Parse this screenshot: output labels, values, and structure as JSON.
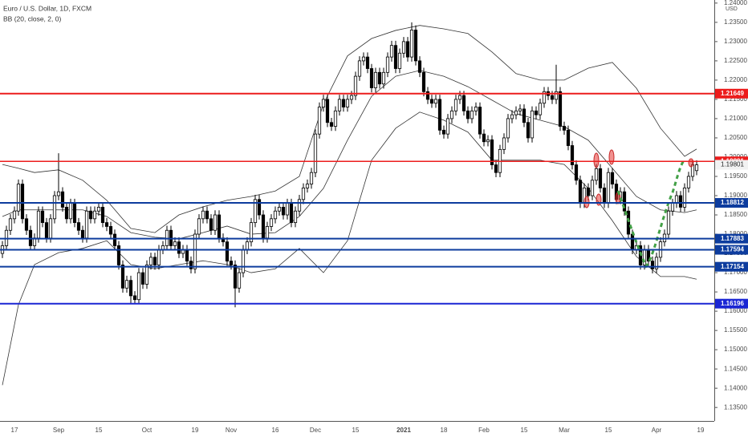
{
  "chart_data": {
    "type": "candlestick",
    "title": "Euro / U.S. Dollar, 1D, FXCM",
    "indicator": "BB (20, close, 2, 0)",
    "y_axis_label": "USD",
    "up_color": "#ffffff",
    "down_color": "#000000",
    "band_color": "#000000",
    "ylim": [
      1.1315,
      1.2408
    ],
    "yticks": [
      {
        "value": 1.135,
        "label": "1.13500"
      },
      {
        "value": 1.14,
        "label": "1.14000"
      },
      {
        "value": 1.145,
        "label": "1.14500"
      },
      {
        "value": 1.15,
        "label": "1.15000"
      },
      {
        "value": 1.155,
        "label": "1.15500"
      },
      {
        "value": 1.16,
        "label": "1.16000"
      },
      {
        "value": 1.165,
        "label": "1.16500"
      },
      {
        "value": 1.17,
        "label": "1.17000"
      },
      {
        "value": 1.175,
        "label": "1.17500"
      },
      {
        "value": 1.18,
        "label": "1.18000"
      },
      {
        "value": 1.185,
        "label": "1.18500"
      },
      {
        "value": 1.19,
        "label": "1.19000"
      },
      {
        "value": 1.195,
        "label": "1.19500"
      },
      {
        "value": 1.2,
        "label": "1.20000"
      },
      {
        "value": 1.205,
        "label": "1.20500"
      },
      {
        "value": 1.21,
        "label": "1.21000"
      },
      {
        "value": 1.215,
        "label": "1.21500"
      },
      {
        "value": 1.22,
        "label": "1.22000"
      },
      {
        "value": 1.225,
        "label": "1.22500"
      },
      {
        "value": 1.23,
        "label": "1.23000"
      },
      {
        "value": 1.235,
        "label": "1.23500"
      },
      {
        "value": 1.24,
        "label": "1.24000"
      }
    ],
    "categories": [
      null,
      null,
      null,
      "17",
      null,
      null,
      null,
      null,
      null,
      null,
      null,
      null,
      null,
      null,
      "Sep",
      null,
      null,
      null,
      null,
      null,
      null,
      null,
      null,
      null,
      "15",
      null,
      null,
      null,
      null,
      null,
      null,
      null,
      null,
      null,
      null,
      null,
      "Oct",
      null,
      null,
      null,
      null,
      null,
      null,
      null,
      null,
      null,
      null,
      null,
      "19",
      null,
      null,
      null,
      null,
      null,
      null,
      null,
      null,
      "Nov",
      null,
      null,
      null,
      null,
      null,
      null,
      null,
      null,
      null,
      null,
      "16",
      null,
      null,
      null,
      null,
      null,
      null,
      null,
      null,
      null,
      "Dec",
      null,
      null,
      null,
      null,
      null,
      null,
      null,
      null,
      null,
      "15",
      null,
      null,
      null,
      null,
      null,
      null,
      null,
      null,
      null,
      null,
      null,
      "2021",
      null,
      null,
      null,
      null,
      null,
      null,
      null,
      null,
      null,
      "18",
      null,
      null,
      null,
      null,
      null,
      null,
      null,
      null,
      null,
      "Feb",
      null,
      null,
      null,
      null,
      null,
      null,
      null,
      null,
      null,
      "15",
      null,
      null,
      null,
      null,
      null,
      null,
      null,
      null,
      null,
      "Mar",
      null,
      null,
      null,
      null,
      null,
      null,
      null,
      null,
      null,
      null,
      "15",
      null,
      null,
      null,
      null,
      null,
      null,
      null,
      null,
      null,
      null,
      null,
      "Apr",
      null,
      null,
      null,
      null,
      null,
      null,
      null,
      null,
      null,
      null,
      "19"
    ],
    "open": [
      1.175,
      1.177,
      1.181,
      1.184,
      1.186,
      1.193,
      1.184,
      1.181,
      1.177,
      1.179,
      1.186,
      1.183,
      1.179,
      1.184,
      1.19,
      1.191,
      1.187,
      1.184,
      1.188,
      1.183,
      1.181,
      1.179,
      1.186,
      1.184,
      1.186,
      1.187,
      1.183,
      1.182,
      1.18,
      1.177,
      1.172,
      1.166,
      1.168,
      1.164,
      1.163,
      1.17,
      1.167,
      1.172,
      1.174,
      1.172,
      1.176,
      1.177,
      1.181,
      1.177,
      1.178,
      1.175,
      1.176,
      1.173,
      1.171,
      1.18,
      1.184,
      1.186,
      1.184,
      1.181,
      1.185,
      1.179,
      1.178,
      1.173,
      1.172,
      1.166,
      1.17,
      1.176,
      1.178,
      1.183,
      1.189,
      1.185,
      1.179,
      1.182,
      1.184,
      1.186,
      1.187,
      1.185,
      1.188,
      1.183,
      1.186,
      1.189,
      1.192,
      1.193,
      1.196,
      1.206,
      1.213,
      1.215,
      1.209,
      1.208,
      1.212,
      1.215,
      1.213,
      1.215,
      1.216,
      1.221,
      1.225,
      1.226,
      1.223,
      1.218,
      1.222,
      1.219,
      1.222,
      1.226,
      1.229,
      1.223,
      1.227,
      1.23,
      1.226,
      1.233,
      1.225,
      1.222,
      1.217,
      1.215,
      1.214,
      1.215,
      1.207,
      1.206,
      1.21,
      1.212,
      1.215,
      1.216,
      1.212,
      1.21,
      1.212,
      1.213,
      1.206,
      1.204,
      1.2045,
      1.198,
      1.196,
      1.202,
      1.205,
      1.21,
      1.211,
      1.212,
      1.2125,
      1.209,
      1.205,
      1.212,
      1.211,
      1.214,
      1.217,
      1.216,
      1.215,
      1.217,
      1.208,
      1.207,
      1.203,
      1.198,
      1.194,
      1.188,
      1.192,
      1.19,
      1.194,
      1.197,
      1.192,
      1.188,
      1.196,
      1.193,
      1.189,
      1.191,
      1.186,
      1.18,
      1.176,
      1.177,
      1.172,
      1.176,
      1.173,
      1.171,
      1.174,
      1.178,
      1.18,
      1.186,
      1.188,
      1.19,
      1.187,
      1.192,
      1.195,
      1.1965,
      null
    ],
    "high": [
      1.1782,
      1.1822,
      1.1852,
      1.1872,
      1.1942,
      1.1942,
      1.1852,
      1.1822,
      1.1802,
      1.1872,
      1.1872,
      1.1842,
      1.1852,
      1.1912,
      1.201,
      1.1922,
      1.1882,
      1.1892,
      1.1892,
      1.1842,
      1.1822,
      1.1872,
      1.1872,
      1.1872,
      1.1882,
      1.1882,
      1.1842,
      1.1832,
      1.1812,
      1.1782,
      1.1732,
      1.1692,
      1.1692,
      1.1652,
      1.1712,
      1.1712,
      1.1732,
      1.1752,
      1.1752,
      1.1772,
      1.1782,
      1.1822,
      1.1822,
      1.1792,
      1.1792,
      1.1772,
      1.1772,
      1.1742,
      1.1812,
      1.1852,
      1.1872,
      1.1872,
      1.1852,
      1.1862,
      1.1862,
      1.1802,
      1.1792,
      1.1742,
      1.1732,
      1.1712,
      1.1772,
      1.1792,
      1.1842,
      1.1902,
      1.1902,
      1.1862,
      1.1832,
      1.1852,
      1.1872,
      1.1882,
      1.1882,
      1.1892,
      1.1892,
      1.1872,
      1.1902,
      1.1932,
      1.1942,
      1.1972,
      1.2072,
      1.2142,
      1.2162,
      1.2162,
      1.2102,
      1.2132,
      1.2162,
      1.2162,
      1.2162,
      1.2172,
      1.2222,
      1.2262,
      1.2272,
      1.2272,
      1.2242,
      1.2232,
      1.2232,
      1.2232,
      1.2272,
      1.2302,
      1.2302,
      1.2282,
      1.2312,
      1.2312,
      1.235,
      1.2342,
      1.2262,
      1.2232,
      1.2182,
      1.2162,
      1.2162,
      1.2162,
      1.2082,
      1.2112,
      1.2132,
      1.2162,
      1.2172,
      1.2172,
      1.2132,
      1.2132,
      1.2142,
      1.2142,
      1.2072,
      1.2057,
      1.2057,
      1.1992,
      1.2032,
      1.2062,
      1.2112,
      1.2122,
      1.2132,
      1.2137,
      1.2137,
      1.2102,
      1.2132,
      1.2132,
      1.2152,
      1.2182,
      1.2182,
      1.2172,
      1.224,
      1.2182,
      1.2092,
      1.2082,
      1.2042,
      1.1992,
      1.1952,
      1.1932,
      1.1932,
      1.1952,
      1.1982,
      1.1982,
      1.1932,
      1.1972,
      1.1972,
      1.1942,
      1.1922,
      1.1922,
      1.1872,
      1.1812,
      1.1782,
      1.1782,
      1.1772,
      1.1772,
      1.1742,
      1.1752,
      1.1792,
      1.1812,
      1.1872,
      1.1892,
      1.1912,
      1.1912,
      1.1932,
      1.1962,
      1.1992,
      1.1992,
      null
    ],
    "low": [
      1.1738,
      1.1758,
      1.1798,
      1.1828,
      1.1848,
      1.1828,
      1.1798,
      1.1758,
      1.1758,
      1.1778,
      1.1818,
      1.1778,
      1.1778,
      1.1828,
      1.1888,
      1.1858,
      1.1828,
      1.1828,
      1.1818,
      1.1798,
      1.1778,
      1.1778,
      1.1828,
      1.1828,
      1.1848,
      1.1818,
      1.1808,
      1.1788,
      1.1758,
      1.1708,
      1.1648,
      1.1648,
      1.162,
      1.1618,
      1.1618,
      1.1658,
      1.1658,
      1.1708,
      1.1708,
      1.1708,
      1.1748,
      1.1758,
      1.1758,
      1.1758,
      1.1738,
      1.1738,
      1.1718,
      1.1698,
      1.1698,
      1.1788,
      1.1828,
      1.1828,
      1.1798,
      1.1798,
      1.1778,
      1.1768,
      1.1718,
      1.1708,
      1.161,
      1.1648,
      1.1688,
      1.1748,
      1.1768,
      1.1818,
      1.1838,
      1.1778,
      1.1778,
      1.1808,
      1.1828,
      1.1848,
      1.1838,
      1.1838,
      1.1818,
      1.1818,
      1.1848,
      1.1878,
      1.1908,
      1.1918,
      1.1948,
      1.2048,
      1.2118,
      1.2078,
      1.2068,
      1.2068,
      1.2108,
      1.2118,
      1.2118,
      1.2138,
      1.2148,
      1.2198,
      1.2238,
      1.2218,
      1.2168,
      1.2168,
      1.2178,
      1.2178,
      1.2208,
      1.2248,
      1.2218,
      1.2218,
      1.2258,
      1.2248,
      1.2248,
      1.2238,
      1.2208,
      1.2158,
      1.2138,
      1.2128,
      1.2128,
      1.2058,
      1.2048,
      1.2048,
      1.2088,
      1.2108,
      1.2138,
      1.2108,
      1.2088,
      1.2088,
      1.2108,
      1.2048,
      1.2028,
      1.2028,
      1.1968,
      1.1948,
      1.1948,
      1.2008,
      1.2038,
      1.2088,
      1.2098,
      1.2108,
      1.2078,
      1.2038,
      1.2038,
      1.2098,
      1.2098,
      1.2128,
      1.2148,
      1.2138,
      1.2138,
      1.2068,
      1.2058,
      1.2018,
      1.1968,
      1.1928,
      1.1868,
      1.1868,
      1.1888,
      1.1888,
      1.1928,
      1.1908,
      1.1868,
      1.1868,
      1.1918,
      1.1878,
      1.1878,
      1.1848,
      1.1788,
      1.1748,
      1.1748,
      1.1708,
      1.1708,
      1.1718,
      1.1698,
      1.1698,
      1.1728,
      1.1768,
      1.1788,
      1.1848,
      1.1868,
      1.1858,
      1.1858,
      1.1908,
      1.1938,
      1.1953,
      null
    ],
    "close": [
      1.177,
      1.181,
      1.184,
      1.186,
      1.193,
      1.184,
      1.181,
      1.177,
      1.179,
      1.186,
      1.183,
      1.179,
      1.184,
      1.19,
      1.191,
      1.187,
      1.184,
      1.188,
      1.183,
      1.181,
      1.179,
      1.186,
      1.184,
      1.186,
      1.187,
      1.183,
      1.182,
      1.18,
      1.177,
      1.172,
      1.166,
      1.168,
      1.164,
      1.163,
      1.17,
      1.167,
      1.172,
      1.174,
      1.172,
      1.176,
      1.177,
      1.181,
      1.177,
      1.178,
      1.175,
      1.176,
      1.173,
      1.171,
      1.18,
      1.184,
      1.186,
      1.184,
      1.181,
      1.185,
      1.179,
      1.178,
      1.173,
      1.172,
      1.166,
      1.17,
      1.176,
      1.178,
      1.183,
      1.189,
      1.185,
      1.179,
      1.182,
      1.184,
      1.186,
      1.187,
      1.185,
      1.188,
      1.183,
      1.186,
      1.189,
      1.192,
      1.193,
      1.196,
      1.206,
      1.213,
      1.215,
      1.209,
      1.208,
      1.212,
      1.215,
      1.213,
      1.215,
      1.216,
      1.221,
      1.225,
      1.226,
      1.223,
      1.218,
      1.222,
      1.219,
      1.222,
      1.226,
      1.229,
      1.223,
      1.227,
      1.23,
      1.226,
      1.233,
      1.225,
      1.222,
      1.217,
      1.215,
      1.214,
      1.215,
      1.207,
      1.206,
      1.21,
      1.212,
      1.215,
      1.216,
      1.212,
      1.21,
      1.212,
      1.213,
      1.206,
      1.204,
      1.2045,
      1.198,
      1.196,
      1.202,
      1.205,
      1.21,
      1.211,
      1.212,
      1.2125,
      1.209,
      1.205,
      1.212,
      1.211,
      1.214,
      1.217,
      1.216,
      1.215,
      1.217,
      1.208,
      1.207,
      1.203,
      1.198,
      1.194,
      1.188,
      1.192,
      1.19,
      1.194,
      1.197,
      1.192,
      1.188,
      1.196,
      1.193,
      1.189,
      1.191,
      1.186,
      1.18,
      1.176,
      1.177,
      1.172,
      1.176,
      1.173,
      1.171,
      1.174,
      1.178,
      1.18,
      1.186,
      1.188,
      1.19,
      1.187,
      1.192,
      1.195,
      1.198,
      1.198,
      null
    ],
    "bands": {
      "x": [
        0,
        4,
        8,
        14,
        20,
        26,
        32,
        38,
        44,
        50,
        56,
        62,
        68,
        74,
        80,
        86,
        92,
        98,
        104,
        110,
        116,
        122,
        128,
        134,
        140,
        146,
        152,
        158,
        164,
        170,
        173
      ],
      "upper": [
        1.1981,
        1.1971,
        1.196,
        1.1967,
        1.194,
        1.1888,
        1.1815,
        1.1804,
        1.185,
        1.1871,
        1.1888,
        1.1898,
        1.1912,
        1.195,
        1.2138,
        1.2263,
        1.2308,
        1.2329,
        1.2342,
        1.2333,
        1.2321,
        1.2273,
        1.2217,
        1.22,
        1.22,
        1.2231,
        1.2246,
        1.2179,
        1.2075,
        1.2002,
        1.2021
      ],
      "middle": [
        1.1846,
        1.1863,
        1.1863,
        1.1863,
        1.1863,
        1.1846,
        1.1804,
        1.1792,
        1.1788,
        1.1804,
        1.1821,
        1.18,
        1.1804,
        1.1846,
        1.1919,
        1.2044,
        1.2158,
        1.221,
        1.2225,
        1.221,
        1.2183,
        1.2148,
        1.2113,
        1.2096,
        1.2079,
        1.2044,
        1.1971,
        1.1898,
        1.1863,
        1.1856,
        1.1863
      ],
      "lower": [
        1.1408,
        1.1617,
        1.1721,
        1.1752,
        1.1763,
        1.1783,
        1.1721,
        1.171,
        1.1721,
        1.1731,
        1.1721,
        1.17,
        1.171,
        1.1763,
        1.17,
        1.1783,
        1.1992,
        1.2075,
        1.2117,
        1.2096,
        1.2065,
        1.1992,
        1.1992,
        1.1992,
        1.1981,
        1.1919,
        1.1835,
        1.1742,
        1.169,
        1.169,
        1.1683
      ]
    },
    "levels": [
      {
        "value": 1.21649,
        "color": "#ec1c1c"
      },
      {
        "value": 1.19891,
        "color": "#ec1c1c"
      },
      {
        "value": 1.18812,
        "color": "#0d3c9e"
      },
      {
        "value": 1.17883,
        "color": "#0d3c9e"
      },
      {
        "value": 1.17594,
        "color": "#0d3c9e"
      },
      {
        "value": 1.17154,
        "color": "#0d3c9e"
      },
      {
        "value": 1.16196,
        "color": "#1a26d4"
      }
    ],
    "last_price": 1.19801
  }
}
